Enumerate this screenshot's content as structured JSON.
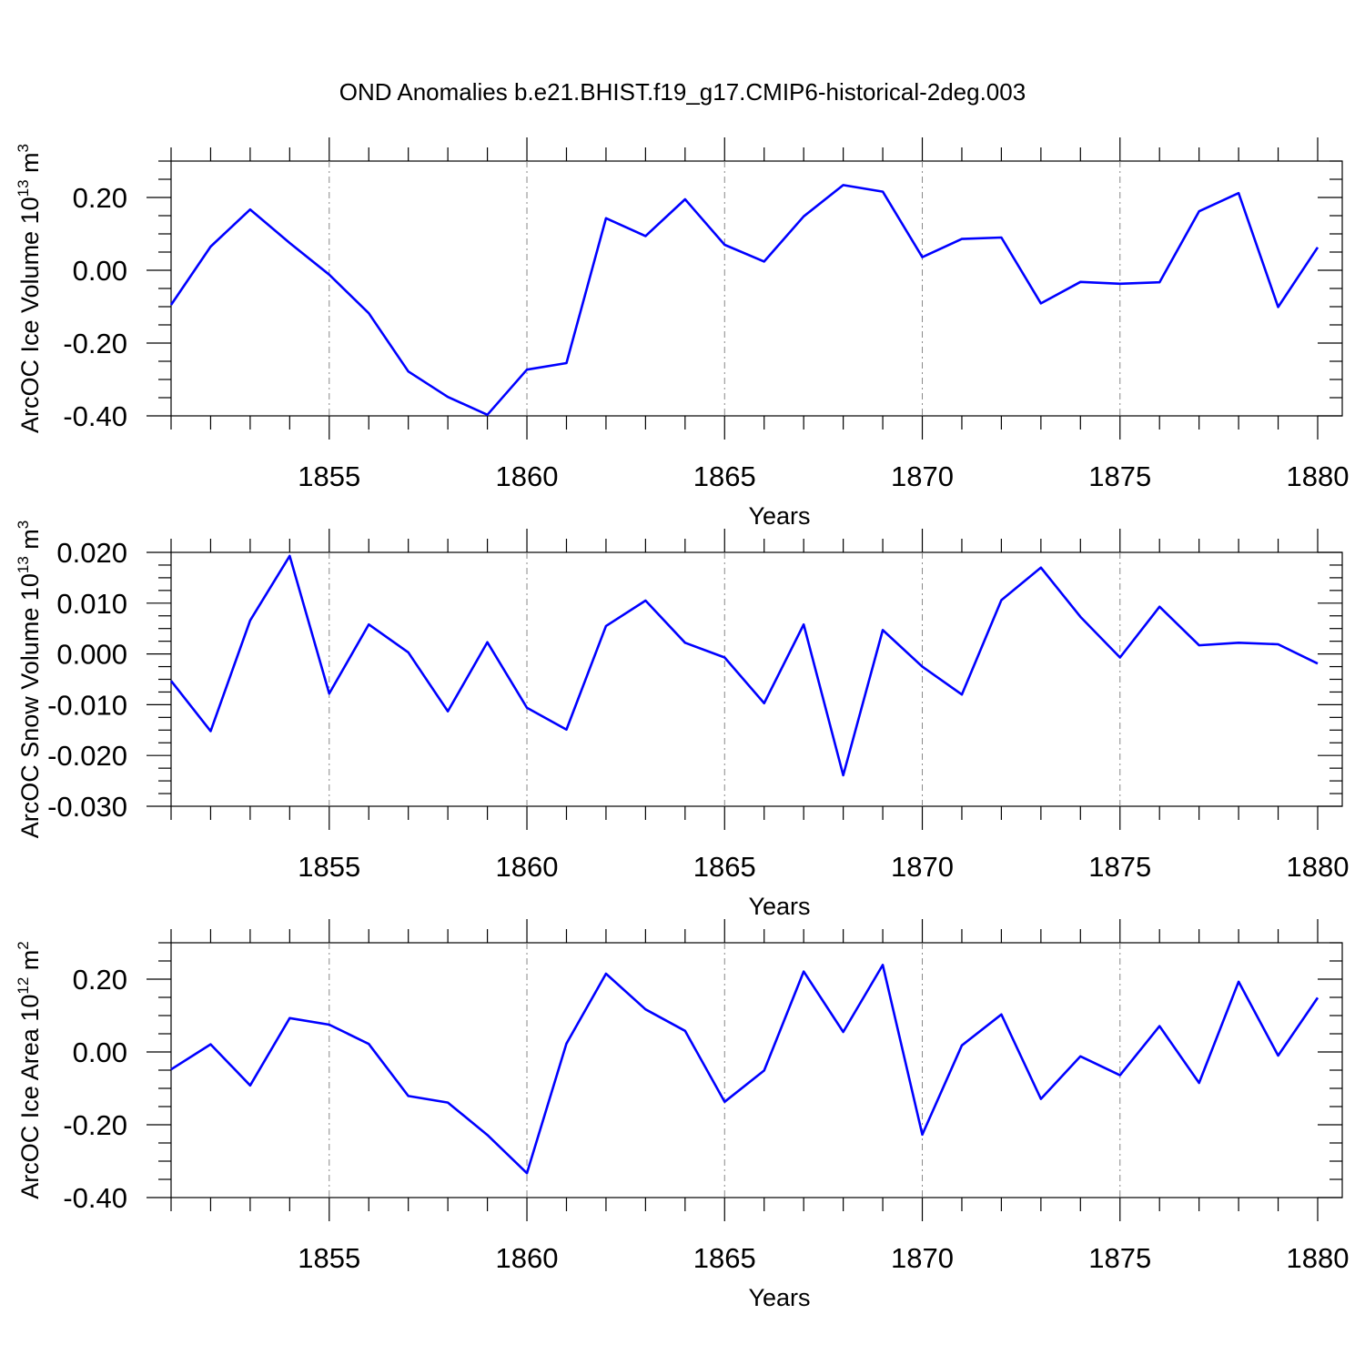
{
  "title": "OND Anomalies b.e21.BHIST.f19_g17.CMIP6-historical-2deg.003",
  "colors": {
    "series": "#0000ff",
    "axes": "#000000",
    "grid": "#888888",
    "background": "#ffffff"
  },
  "chart_data": [
    {
      "type": "line",
      "xlabel": "Years",
      "ylabel": {
        "text": "ArcOC Ice Volume 10",
        "exp1": "13",
        "unit": " m",
        "exp2": "3"
      },
      "xlim": [
        1851,
        1880
      ],
      "ylim": [
        -0.4,
        0.3
      ],
      "xticks": [
        1855,
        1860,
        1865,
        1870,
        1875,
        1880
      ],
      "xtick_labels": [
        "1855",
        "1860",
        "1865",
        "1870",
        "1875",
        "1880"
      ],
      "yticks": [
        -0.4,
        -0.2,
        0.0,
        0.2
      ],
      "ytick_labels": [
        "-0.40",
        "-0.20",
        "0.00",
        "0.20"
      ],
      "yminor_step": 0.05,
      "grid": "vertical dashed at major x ticks",
      "x": [
        1851,
        1852,
        1853,
        1854,
        1855,
        1856,
        1857,
        1858,
        1859,
        1860,
        1861,
        1862,
        1863,
        1864,
        1865,
        1866,
        1867,
        1868,
        1869,
        1870,
        1871,
        1872,
        1873,
        1874,
        1875,
        1876,
        1877,
        1878,
        1879,
        1880
      ],
      "series": [
        {
          "name": "ArcOC Ice Volume",
          "values": [
            -0.095,
            0.065,
            0.167,
            0.075,
            -0.012,
            -0.118,
            -0.278,
            -0.348,
            -0.397,
            -0.273,
            -0.255,
            0.143,
            0.094,
            0.195,
            0.07,
            0.024,
            0.148,
            0.234,
            0.216,
            0.036,
            0.086,
            0.09,
            -0.091,
            -0.032,
            -0.037,
            -0.033,
            0.162,
            0.212,
            -0.101,
            0.063
          ]
        }
      ]
    },
    {
      "type": "line",
      "xlabel": "Years",
      "ylabel": {
        "text": "ArcOC Snow Volume 10",
        "exp1": "13",
        "unit": " m",
        "exp2": "3"
      },
      "xlim": [
        1851,
        1880
      ],
      "ylim": [
        -0.03,
        0.02
      ],
      "xticks": [
        1855,
        1860,
        1865,
        1870,
        1875,
        1880
      ],
      "xtick_labels": [
        "1855",
        "1860",
        "1865",
        "1870",
        "1875",
        "1880"
      ],
      "yticks": [
        -0.03,
        -0.02,
        -0.01,
        0.0,
        0.01,
        0.02
      ],
      "ytick_labels": [
        "-0.030",
        "-0.020",
        "-0.010",
        "0.000",
        "0.010",
        "0.020"
      ],
      "yminor_step": 0.0025,
      "grid": "vertical dashed at major x ticks",
      "x": [
        1851,
        1852,
        1853,
        1854,
        1855,
        1856,
        1857,
        1858,
        1859,
        1860,
        1861,
        1862,
        1863,
        1864,
        1865,
        1866,
        1867,
        1868,
        1869,
        1870,
        1871,
        1872,
        1873,
        1874,
        1875,
        1876,
        1877,
        1878,
        1879,
        1880
      ],
      "series": [
        {
          "name": "ArcOC Snow Volume",
          "values": [
            -0.0053,
            -0.0152,
            0.0066,
            0.0193,
            -0.0078,
            0.0058,
            0.0003,
            -0.0113,
            0.0023,
            -0.0106,
            -0.0149,
            0.0055,
            0.0105,
            0.0022,
            -0.0007,
            -0.0097,
            0.0058,
            -0.0239,
            0.0047,
            -0.0025,
            -0.008,
            0.0106,
            0.017,
            0.0073,
            -0.0007,
            0.0093,
            0.0017,
            0.0022,
            0.0019,
            -0.0019
          ]
        }
      ]
    },
    {
      "type": "line",
      "xlabel": "Years",
      "ylabel": {
        "text": "ArcOC Ice Area 10",
        "exp1": "12",
        "unit": " m",
        "exp2": "2"
      },
      "xlim": [
        1851,
        1880
      ],
      "ylim": [
        -0.4,
        0.3
      ],
      "xticks": [
        1855,
        1860,
        1865,
        1870,
        1875,
        1880
      ],
      "xtick_labels": [
        "1855",
        "1860",
        "1865",
        "1870",
        "1875",
        "1880"
      ],
      "yticks": [
        -0.4,
        -0.2,
        0.0,
        0.2
      ],
      "ytick_labels": [
        "-0.40",
        "-0.20",
        "0.00",
        "0.20"
      ],
      "yminor_step": 0.05,
      "grid": "vertical dashed at major x ticks",
      "x": [
        1851,
        1852,
        1853,
        1854,
        1855,
        1856,
        1857,
        1858,
        1859,
        1860,
        1861,
        1862,
        1863,
        1864,
        1865,
        1866,
        1867,
        1868,
        1869,
        1870,
        1871,
        1872,
        1873,
        1874,
        1875,
        1876,
        1877,
        1878,
        1879,
        1880
      ],
      "series": [
        {
          "name": "ArcOC Ice Area",
          "values": [
            -0.048,
            0.021,
            -0.092,
            0.093,
            0.075,
            0.022,
            -0.121,
            -0.139,
            -0.228,
            -0.333,
            0.023,
            0.215,
            0.117,
            0.058,
            -0.137,
            -0.051,
            0.221,
            0.055,
            0.239,
            -0.227,
            0.018,
            0.103,
            -0.129,
            -0.012,
            -0.064,
            0.071,
            -0.085,
            0.193,
            -0.01,
            0.149
          ]
        }
      ]
    }
  ]
}
